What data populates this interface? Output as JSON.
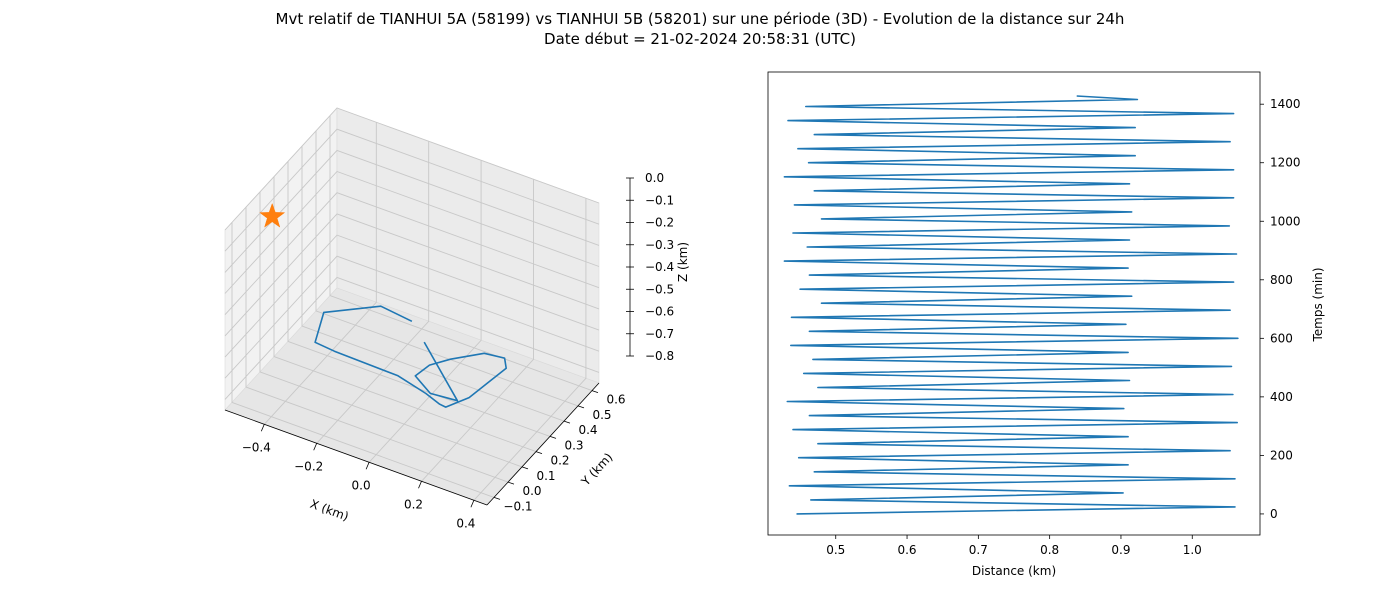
{
  "title": {
    "line1": "Mvt relatif de TIANHUI 5A (58199) vs TIANHUI 5B (58201) sur une période (3D) - Evolution de la distance sur 24h",
    "line2": "Date début = 21-02-2024 20:58:31 (UTC)"
  },
  "colors": {
    "series": "#1f77b4",
    "marker": "#ff7f0e"
  },
  "chart_data": [
    {
      "type": "line3d",
      "xlabel": "X (km)",
      "ylabel": "Y (km)",
      "zlabel": "Z (km)",
      "xlim": [
        -0.55,
        0.45
      ],
      "ylim": [
        -0.15,
        0.65
      ],
      "zlim": [
        -0.85,
        0.0
      ],
      "xticks": [
        "−0.4",
        "−0.2",
        "0.0",
        "0.2",
        "0.4"
      ],
      "yticks": [
        "−0.1",
        "0.0",
        "0.1",
        "0.2",
        "0.3",
        "0.4",
        "0.5",
        "0.6"
      ],
      "zticks": [
        "0.0",
        "−0.1",
        "−0.2",
        "−0.3",
        "−0.4",
        "−0.5",
        "−0.6",
        "−0.7",
        "−0.8"
      ],
      "grid": true,
      "marker": {
        "shape": "star",
        "x": -0.45,
        "y": 0.0,
        "z": 0.0
      },
      "series": [
        {
          "points": [
            [
              -0.12,
              0.38,
              -0.62
            ],
            [
              -0.26,
              0.42,
              -0.64
            ],
            [
              -0.44,
              0.35,
              -0.7
            ],
            [
              -0.42,
              0.25,
              -0.76
            ],
            [
              -0.33,
              0.22,
              -0.74
            ],
            [
              -0.05,
              0.15,
              -0.68
            ],
            [
              0.11,
              0.05,
              -0.62
            ],
            [
              0.2,
              -0.02,
              -0.58
            ],
            [
              0.18,
              0.06,
              -0.66
            ],
            [
              0.2,
              0.19,
              -0.7
            ],
            [
              0.24,
              0.38,
              -0.68
            ],
            [
              0.17,
              0.5,
              -0.75
            ],
            [
              0.06,
              0.56,
              -0.82
            ],
            [
              -0.01,
              0.45,
              -0.8
            ],
            [
              -0.01,
              0.3,
              -0.72
            ],
            [
              0.0,
              0.18,
              -0.68
            ],
            [
              0.1,
              0.1,
              -0.66
            ],
            [
              0.23,
              0.05,
              -0.6
            ],
            [
              -0.03,
              0.3,
              -0.62
            ]
          ]
        }
      ]
    },
    {
      "type": "line",
      "xlabel": "Distance (km)",
      "ylabel": "Temps (min)",
      "xlim": [
        0.405,
        1.095
      ],
      "ylim": [
        -72,
        1510
      ],
      "xticks": [
        0.5,
        0.6,
        0.7,
        0.8,
        0.9,
        1.0
      ],
      "yticks": [
        0,
        200,
        400,
        600,
        800,
        1000,
        1200,
        1400
      ],
      "grid": false,
      "series": [
        {
          "x": [
            0.445,
            1.06,
            0.465,
            0.903,
            0.435,
            1.06,
            0.47,
            0.91,
            0.448,
            1.053,
            0.475,
            0.91,
            0.44,
            1.063,
            0.463,
            0.904,
            0.432,
            1.057,
            0.475,
            0.912,
            0.455,
            1.055,
            0.468,
            0.91,
            0.437,
            1.064,
            0.463,
            0.907,
            0.438,
            1.053,
            0.48,
            0.915,
            0.45,
            1.058,
            0.463,
            0.91,
            0.428,
            1.062,
            0.46,
            0.912,
            0.44,
            1.052,
            0.48,
            0.915,
            0.442,
            1.058,
            0.47,
            0.912,
            0.428,
            1.058,
            0.462,
            0.92,
            0.447,
            1.053,
            0.47,
            0.92,
            0.433,
            1.058,
            0.458,
            0.923,
            0.838
          ],
          "y": [
            0,
            24,
            48,
            72,
            96,
            120,
            144,
            168,
            192,
            216,
            240,
            264,
            288,
            312,
            336,
            360,
            384,
            408,
            432,
            456,
            480,
            504,
            528,
            552,
            576,
            600,
            624,
            648,
            672,
            696,
            720,
            744,
            768,
            792,
            816,
            840,
            864,
            888,
            912,
            936,
            960,
            984,
            1008,
            1032,
            1056,
            1080,
            1104,
            1128,
            1152,
            1176,
            1200,
            1224,
            1248,
            1272,
            1296,
            1320,
            1344,
            1368,
            1392,
            1416,
            1428
          ]
        }
      ]
    }
  ]
}
